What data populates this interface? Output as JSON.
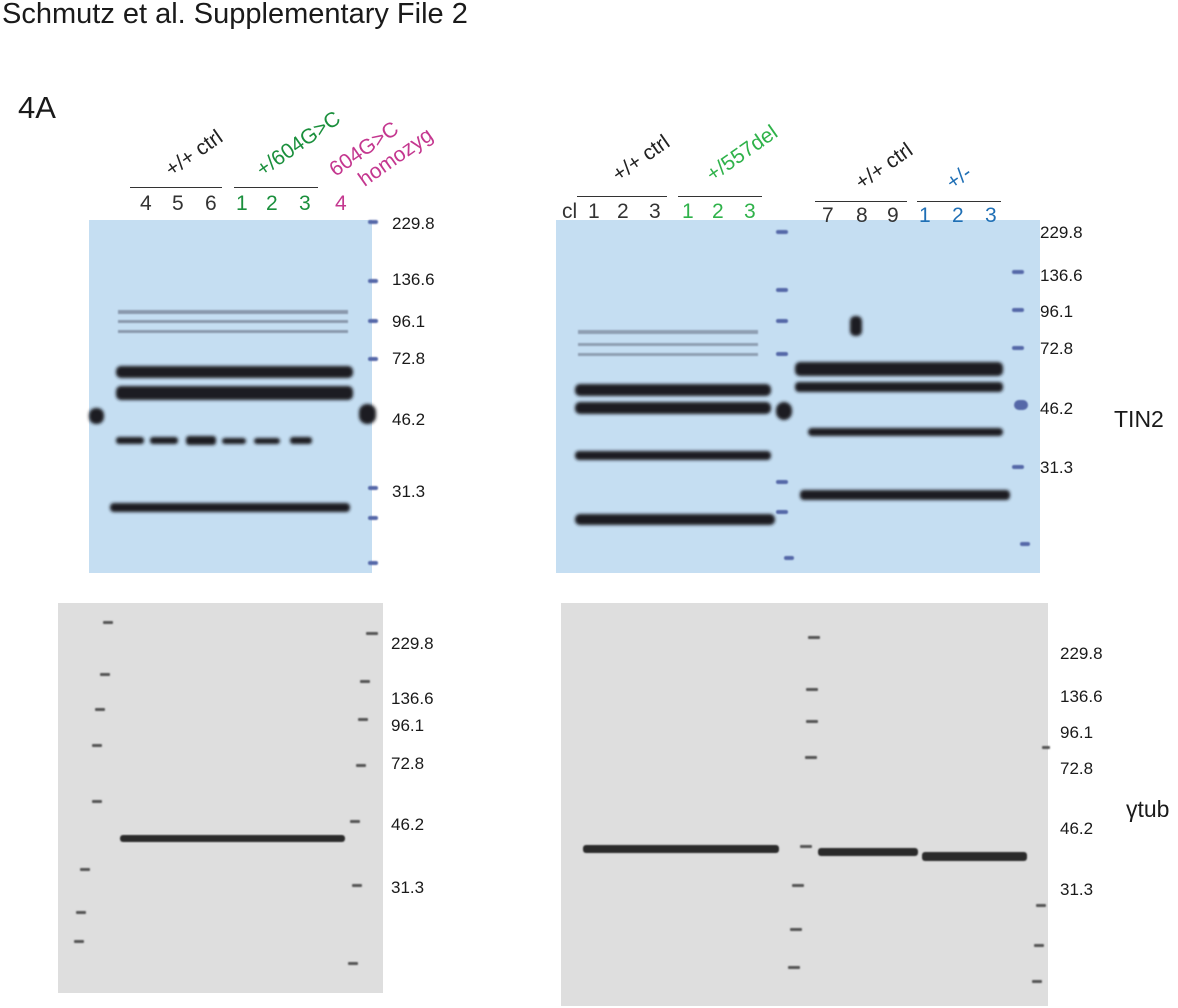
{
  "title": "Schmutz et al. Supplementary File 2",
  "panel": "4A",
  "colors": {
    "black": "#222222",
    "green": "#1a8f3c",
    "light_green": "#2fb24a",
    "magenta": "#c4378f",
    "blue": "#1f6fb5",
    "blot_blue": "#c7dff3",
    "blot_gray": "#dcdcdc"
  },
  "left_blot": {
    "groups": {
      "wt": "+/+ ctrl",
      "mut": "+/604G>C",
      "homo_line1": "604G>C",
      "homo_line2": "homozyg"
    },
    "lanes_wt": [
      "4",
      "5",
      "6"
    ],
    "lanes_mut": [
      "1",
      "2",
      "3"
    ],
    "lane_homo": "4",
    "markers": [
      "229.8",
      "136.6",
      "96.1",
      "72.8",
      "46.2",
      "31.3"
    ],
    "markers_tub": [
      "229.8",
      "136.6",
      "96.1",
      "72.8",
      "46.2",
      "31.3"
    ]
  },
  "right_blot": {
    "groups": {
      "wt1": "+/+ ctrl",
      "del": "+/557del",
      "wt2": "+/+ ctrl",
      "het": "+/-"
    },
    "lane_cl": "cl",
    "lanes_wt1": [
      "1",
      "2",
      "3"
    ],
    "lanes_del": [
      "1",
      "2",
      "3"
    ],
    "lanes_wt2": [
      "7",
      "8",
      "9"
    ],
    "lanes_het": [
      "1",
      "2",
      "3"
    ],
    "markers": [
      "229.8",
      "136.6",
      "96.1",
      "72.8",
      "46.2",
      "31.3"
    ],
    "markers_tub": [
      "229.8",
      "136.6",
      "96.1",
      "72.8",
      "46.2",
      "31.3"
    ]
  },
  "antibodies": {
    "top": "TIN2",
    "bottom": "γtub"
  }
}
